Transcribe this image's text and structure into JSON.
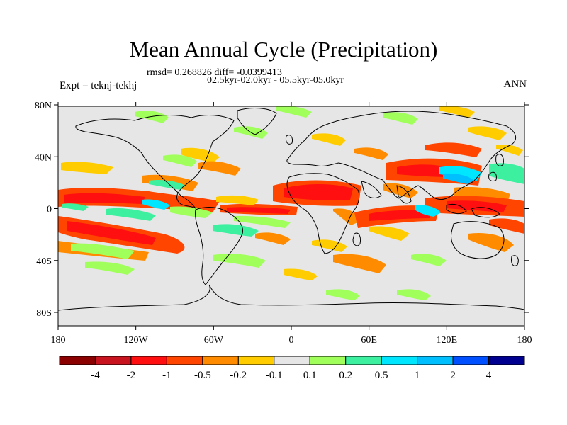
{
  "title": "Mean Annual Cycle (Precipitation)",
  "stats": "rmsd= 0.268826 diff= -0.0399413",
  "period": "02.5kyr-02.0kyr - 05.5kyr-05.0kyr",
  "experiment": "Expt = teknj-tekhj",
  "season": "ANN",
  "lat_ticks": [
    "80N",
    "40N",
    "0",
    "40S",
    "80S"
  ],
  "lon_ticks": [
    "180",
    "120W",
    "60W",
    "0",
    "60E",
    "120E",
    "180"
  ],
  "colorbar": {
    "colors": [
      "#8b0000",
      "#c8141e",
      "#ff0f0f",
      "#ff4500",
      "#ff8c00",
      "#ffcc00",
      "#e6e6e6",
      "#a0ff5a",
      "#3cf0a0",
      "#00e6ff",
      "#00bfff",
      "#0050ff",
      "#000090"
    ],
    "labels": [
      "-4",
      "-2",
      "-1",
      "-0.5",
      "-0.2",
      "-0.1",
      "0.1",
      "0.2",
      "0.5",
      "1",
      "2",
      "4"
    ]
  }
}
